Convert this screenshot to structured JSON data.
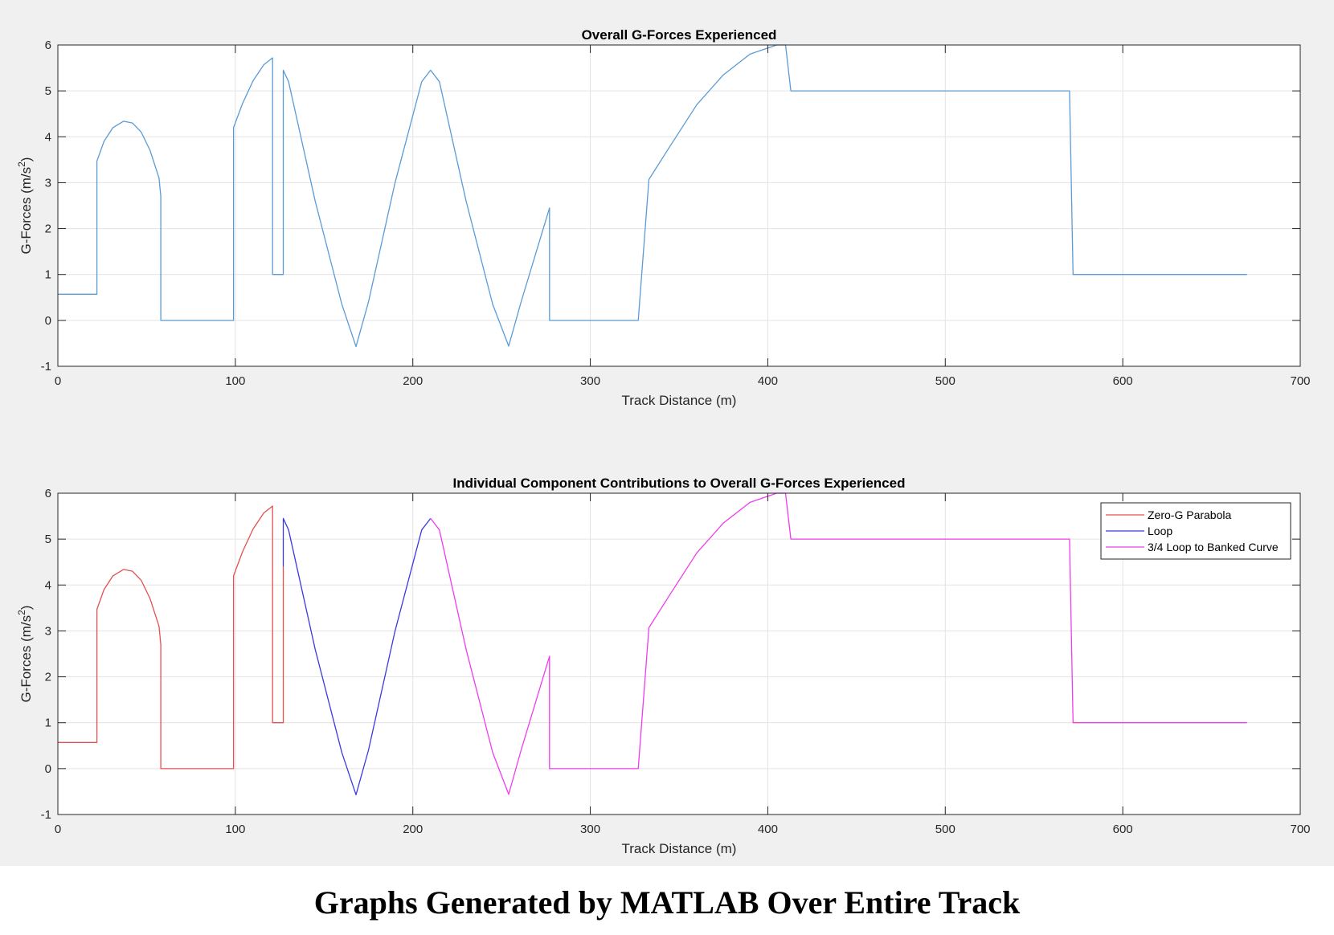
{
  "caption": "Graphs Generated by MATLAB Over Entire Track",
  "chart_data": [
    {
      "type": "line",
      "title": "Overall G-Forces Experienced",
      "xlabel": "Track Distance (m)",
      "ylabel": "G-Forces (m/s",
      "ylabel_sup": "2",
      "xlim": [
        0,
        700
      ],
      "ylim": [
        -1,
        6
      ],
      "xticks": [
        0,
        100,
        200,
        300,
        400,
        500,
        600,
        700
      ],
      "yticks": [
        -1,
        0,
        1,
        2,
        3,
        4,
        5,
        6
      ],
      "grid": true,
      "legend": null,
      "series": [
        {
          "color": "#5b9bd5",
          "points": [
            [
              0,
              0.57
            ],
            [
              22,
              0.57
            ],
            [
              22,
              3.47
            ],
            [
              26,
              3.9
            ],
            [
              31,
              4.2
            ],
            [
              37,
              4.34
            ],
            [
              42,
              4.3
            ],
            [
              47,
              4.1
            ],
            [
              52,
              3.7
            ],
            [
              57,
              3.1
            ],
            [
              58,
              2.7
            ],
            [
              58,
              0
            ],
            [
              99,
              0
            ],
            [
              99,
              4.2
            ],
            [
              104,
              4.72
            ],
            [
              110,
              5.22
            ],
            [
              116,
              5.57
            ],
            [
              121,
              5.72
            ],
            [
              121,
              1
            ],
            [
              127,
              1
            ],
            [
              127,
              5.45
            ],
            [
              130,
              5.2
            ],
            [
              145,
              2.6
            ],
            [
              160,
              0.35
            ],
            [
              168,
              -0.57
            ],
            [
              175,
              0.4
            ],
            [
              190,
              3
            ],
            [
              205,
              5.2
            ],
            [
              210,
              5.45
            ],
            [
              215,
              5.2
            ],
            [
              230,
              2.6
            ],
            [
              245,
              0.35
            ],
            [
              254,
              -0.56
            ],
            [
              261,
              0.4
            ],
            [
              277,
              2.45
            ],
            [
              277,
              0
            ],
            [
              327,
              0
            ],
            [
              333,
              3.07
            ],
            [
              345,
              3.8
            ],
            [
              360,
              4.7
            ],
            [
              375,
              5.35
            ],
            [
              390,
              5.8
            ],
            [
              405,
              6.0
            ],
            [
              410,
              6.0
            ],
            [
              413,
              5.0
            ],
            [
              570,
              5.0
            ],
            [
              572,
              1.0
            ],
            [
              670,
              1.0
            ]
          ]
        }
      ]
    },
    {
      "type": "line",
      "title": "Individual Component Contributions to Overall G-Forces Experienced",
      "xlabel": "Track Distance (m)",
      "ylabel": "G-Forces (m/s",
      "ylabel_sup": "2",
      "xlim": [
        0,
        700
      ],
      "ylim": [
        -1,
        6
      ],
      "xticks": [
        0,
        100,
        200,
        300,
        400,
        500,
        600,
        700
      ],
      "yticks": [
        -1,
        0,
        1,
        2,
        3,
        4,
        5,
        6
      ],
      "grid": true,
      "legend": "top-right",
      "series": [
        {
          "name": "Zero-G Parabola",
          "color": "#e35050",
          "points": [
            [
              0,
              0.57
            ],
            [
              22,
              0.57
            ],
            [
              22,
              3.47
            ],
            [
              26,
              3.9
            ],
            [
              31,
              4.2
            ],
            [
              37,
              4.34
            ],
            [
              42,
              4.3
            ],
            [
              47,
              4.1
            ],
            [
              52,
              3.7
            ],
            [
              57,
              3.1
            ],
            [
              58,
              2.7
            ],
            [
              58,
              0
            ],
            [
              99,
              0
            ],
            [
              99,
              4.2
            ],
            [
              104,
              4.72
            ],
            [
              110,
              5.22
            ],
            [
              116,
              5.57
            ],
            [
              121,
              5.72
            ],
            [
              121,
              1
            ],
            [
              127,
              1
            ],
            [
              127,
              4.4
            ]
          ]
        },
        {
          "name": "Loop",
          "color": "#3a3ae0",
          "points": [
            [
              127,
              4.4
            ],
            [
              127,
              5.45
            ],
            [
              130,
              5.2
            ],
            [
              145,
              2.6
            ],
            [
              160,
              0.35
            ],
            [
              168,
              -0.57
            ],
            [
              175,
              0.4
            ],
            [
              190,
              3
            ],
            [
              205,
              5.2
            ],
            [
              210,
              5.45
            ]
          ]
        },
        {
          "name": "3/4 Loop to Banked Curve",
          "color": "#ee3cee",
          "points": [
            [
              210,
              5.45
            ],
            [
              215,
              5.2
            ],
            [
              230,
              2.6
            ],
            [
              245,
              0.35
            ],
            [
              254,
              -0.56
            ],
            [
              261,
              0.4
            ],
            [
              277,
              2.45
            ],
            [
              277,
              0
            ],
            [
              327,
              0
            ],
            [
              333,
              3.07
            ],
            [
              345,
              3.8
            ],
            [
              360,
              4.7
            ],
            [
              375,
              5.35
            ],
            [
              390,
              5.8
            ],
            [
              405,
              6.0
            ],
            [
              410,
              6.0
            ],
            [
              413,
              5.0
            ],
            [
              570,
              5.0
            ],
            [
              572,
              1.0
            ],
            [
              670,
              1.0
            ]
          ]
        }
      ]
    }
  ]
}
